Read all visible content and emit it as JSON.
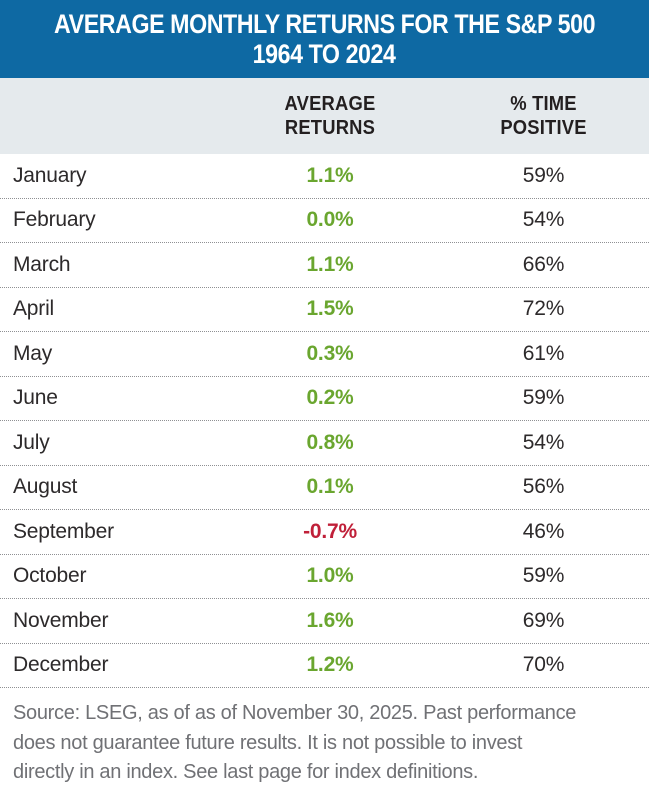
{
  "title": {
    "line1": "AVERAGE MONTHLY RETURNS FOR THE S&P 500",
    "line2": "1964 TO 2024"
  },
  "columns": {
    "average": [
      "AVERAGE",
      "RETURNS"
    ],
    "positive": [
      "% TIME",
      "POSITIVE"
    ]
  },
  "rows": [
    {
      "month": "January",
      "avg": "1.1%",
      "pos": "59%",
      "negative": false
    },
    {
      "month": "February",
      "avg": "0.0%",
      "pos": "54%",
      "negative": false
    },
    {
      "month": "March",
      "avg": "1.1%",
      "pos": "66%",
      "negative": false
    },
    {
      "month": "April",
      "avg": "1.5%",
      "pos": "72%",
      "negative": false
    },
    {
      "month": "May",
      "avg": "0.3%",
      "pos": "61%",
      "negative": false
    },
    {
      "month": "June",
      "avg": "0.2%",
      "pos": "59%",
      "negative": false
    },
    {
      "month": "July",
      "avg": "0.8%",
      "pos": "54%",
      "negative": false
    },
    {
      "month": "August",
      "avg": "0.1%",
      "pos": "56%",
      "negative": false
    },
    {
      "month": "September",
      "avg": "-0.7%",
      "pos": "46%",
      "negative": true
    },
    {
      "month": "October",
      "avg": "1.0%",
      "pos": "59%",
      "negative": false
    },
    {
      "month": "November",
      "avg": "1.6%",
      "pos": "69%",
      "negative": false
    },
    {
      "month": "December",
      "avg": "1.2%",
      "pos": "70%",
      "negative": false
    }
  ],
  "footer": {
    "lines": [
      "Source: LSEG, as of as of November 30, 2025. Past performance",
      "does not guarantee future results. It is not possible to invest",
      "directly in an index. See last page for index definitions."
    ]
  },
  "colors": {
    "header_blue": "#0e69a3",
    "band_gray": "#e5eaed",
    "positive_green": "#6aa62f",
    "negative_red": "#c02039",
    "text_dark": "#2d2a2b",
    "footer_gray": "#707175",
    "dotted_separator": "#8f9093"
  },
  "chart_data": {
    "type": "table",
    "title": "AVERAGE MONTHLY RETURNS FOR THE S&P 500 1964 TO 2024",
    "categories": [
      "January",
      "February",
      "March",
      "April",
      "May",
      "June",
      "July",
      "August",
      "September",
      "October",
      "November",
      "December"
    ],
    "series": [
      {
        "name": "Average Returns (%)",
        "values": [
          1.1,
          0.0,
          1.1,
          1.5,
          0.3,
          0.2,
          0.8,
          0.1,
          -0.7,
          1.0,
          1.6,
          1.2
        ]
      },
      {
        "name": "% Time Positive",
        "values": [
          59,
          54,
          66,
          72,
          61,
          59,
          54,
          56,
          46,
          59,
          69,
          70
        ]
      }
    ]
  }
}
